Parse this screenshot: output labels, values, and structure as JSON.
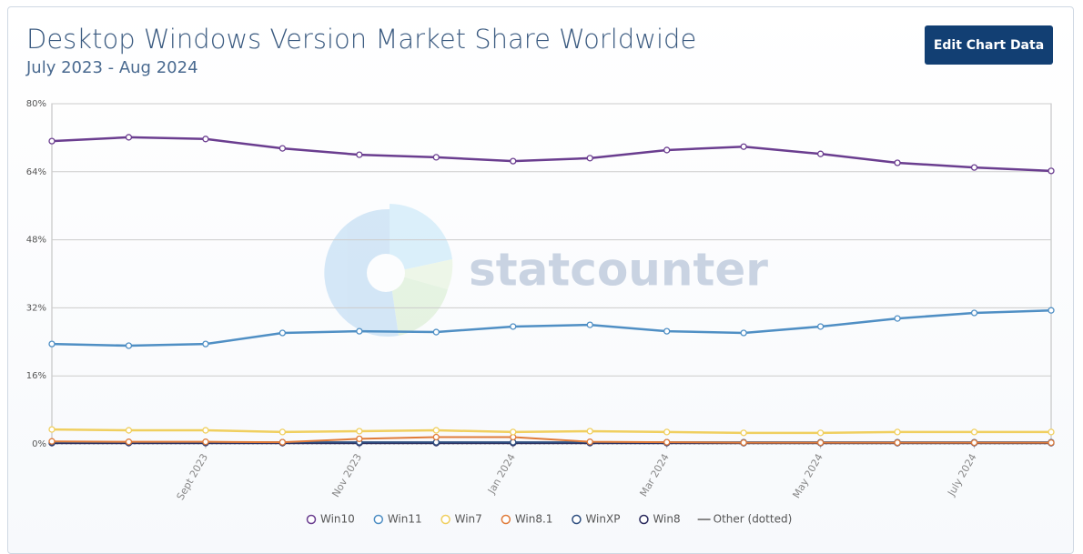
{
  "chart_data": {
    "type": "line",
    "title": "Desktop Windows Version Market Share Worldwide",
    "subtitle": "July 2023 - Aug 2024",
    "button": "Edit Chart Data",
    "watermark": "statcounter",
    "categories": [
      null,
      null,
      "Sept 2023",
      null,
      "Nov 2023",
      null,
      "Jan 2024",
      null,
      "Mar 2024",
      null,
      "May 2024",
      null,
      "July 2024",
      null
    ],
    "ylim": [
      0,
      80
    ],
    "yticks": [
      {
        "value": 0,
        "label": "0%"
      },
      {
        "value": 16,
        "label": "16%"
      },
      {
        "value": 32,
        "label": "32%"
      },
      {
        "value": 48,
        "label": "48%"
      },
      {
        "value": 64,
        "label": "64%"
      },
      {
        "value": 80,
        "label": "80%"
      }
    ],
    "grid": true,
    "legend": "bottom",
    "series": [
      {
        "name": "Win10",
        "color": "#6a3d8f",
        "values": [
          71.2,
          72.1,
          71.7,
          69.5,
          68.0,
          67.4,
          66.5,
          67.2,
          69.1,
          69.9,
          68.2,
          66.1,
          65.0,
          64.2
        ]
      },
      {
        "name": "Win11",
        "color": "#4f8fc4",
        "values": [
          23.5,
          23.1,
          23.5,
          26.1,
          26.5,
          26.3,
          27.6,
          28.0,
          26.5,
          26.1,
          27.6,
          29.5,
          30.8,
          31.4
        ]
      },
      {
        "name": "Win7",
        "color": "#f0cf5f",
        "values": [
          3.4,
          3.2,
          3.2,
          2.8,
          3.0,
          3.2,
          2.8,
          3.0,
          2.8,
          2.6,
          2.6,
          2.8,
          2.8,
          2.8
        ]
      },
      {
        "name": "Win8.1",
        "color": "#e07b39",
        "values": [
          0.6,
          0.5,
          0.5,
          0.4,
          1.2,
          1.6,
          1.6,
          0.5,
          0.4,
          0.3,
          0.3,
          0.3,
          0.3,
          0.3
        ]
      },
      {
        "name": "WinXP",
        "color": "#2f4f80",
        "values": [
          0.4,
          0.4,
          0.4,
          0.4,
          0.4,
          0.4,
          0.4,
          0.4,
          0.4,
          0.4,
          0.4,
          0.4,
          0.4,
          0.4
        ]
      },
      {
        "name": "Win8",
        "color": "#29295c",
        "values": [
          0.2,
          0.2,
          0.2,
          0.2,
          0.2,
          0.2,
          0.2,
          0.2,
          0.2,
          0.2,
          0.2,
          0.2,
          0.2,
          0.2
        ]
      },
      {
        "name": "Other (dotted)",
        "color": "#888888",
        "dotted": true,
        "values": [
          0.1,
          0.1,
          0.1,
          0.1,
          0.1,
          0.1,
          0.1,
          0.1,
          0.1,
          0.1,
          0.1,
          0.1,
          0.1,
          0.1
        ]
      }
    ]
  }
}
